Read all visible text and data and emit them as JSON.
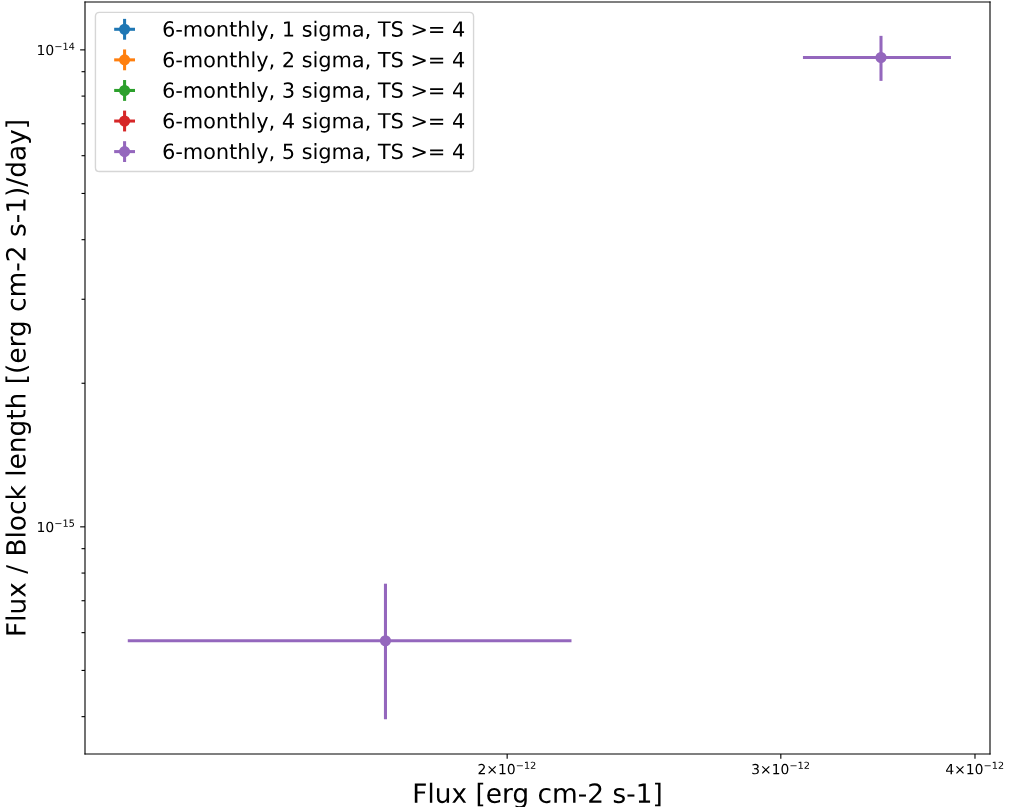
{
  "chart_data": {
    "type": "scatter",
    "xlabel": "Flux [erg cm-2 s-1]",
    "ylabel": "Flux / Block length [(erg cm-2 s-1)/day]",
    "log": "xy",
    "marker": "circle",
    "legend": "top left",
    "grid": false,
    "xlim": [
      1.07e-12,
      4.09e-12
    ],
    "xticks": [
      {
        "value": 2e-12,
        "label": "2×10$^{−12}$"
      },
      {
        "value": 3e-12,
        "label": "3×10$^{−12}$"
      },
      {
        "value": 4e-12,
        "label": "4×10$^{−12}$"
      }
    ],
    "ylim": [
      3.34e-16,
      1.26e-14
    ],
    "yticks": [
      {
        "value": 4e-16,
        "label": null
      },
      {
        "value": 5e-16,
        "label": null
      },
      {
        "value": 6e-16,
        "label": null
      },
      {
        "value": 7e-16,
        "label": null
      },
      {
        "value": 8e-16,
        "label": null
      },
      {
        "value": 9e-16,
        "label": null
      },
      {
        "value": 1e-15,
        "label": "10$^{−15}$"
      },
      {
        "value": 2e-15,
        "label": null
      },
      {
        "value": 3e-15,
        "label": null
      },
      {
        "value": 4e-15,
        "label": null
      },
      {
        "value": 5e-15,
        "label": null
      },
      {
        "value": 6e-15,
        "label": null
      },
      {
        "value": 7e-15,
        "label": null
      },
      {
        "value": 8e-15,
        "label": null
      },
      {
        "value": 9e-15,
        "label": null
      },
      {
        "value": 1e-14,
        "label": "10$^{−14}$"
      }
    ],
    "series": [
      {
        "name": "6-monthly, 1 sigma, TS >= 4",
        "color": "#1f77b4"
      },
      {
        "name": "6-monthly, 2 sigma, TS >= 4",
        "color": "#ff7f0e"
      },
      {
        "name": "6-monthly, 3 sigma, TS >= 4",
        "color": "#2ca02c"
      },
      {
        "name": "6-monthly, 4 sigma, TS >= 4",
        "color": "#d62728"
      },
      {
        "name": "6-monthly, 5 sigma, TS >= 4",
        "color": "#9467bd",
        "x": [
          1.67e-12,
          3.48e-12
        ],
        "values": [
          5.77e-16,
          9.64e-15
        ],
        "errors": [
          [
            3.95e-16,
            7.6e-16
          ],
          [
            8.61e-15,
            1.07e-14
          ]
        ],
        "xerrors": [
          [
            1.14e-12,
            2.2e-12
          ],
          [
            3.1e-12,
            3.86e-12
          ]
        ]
      }
    ]
  }
}
